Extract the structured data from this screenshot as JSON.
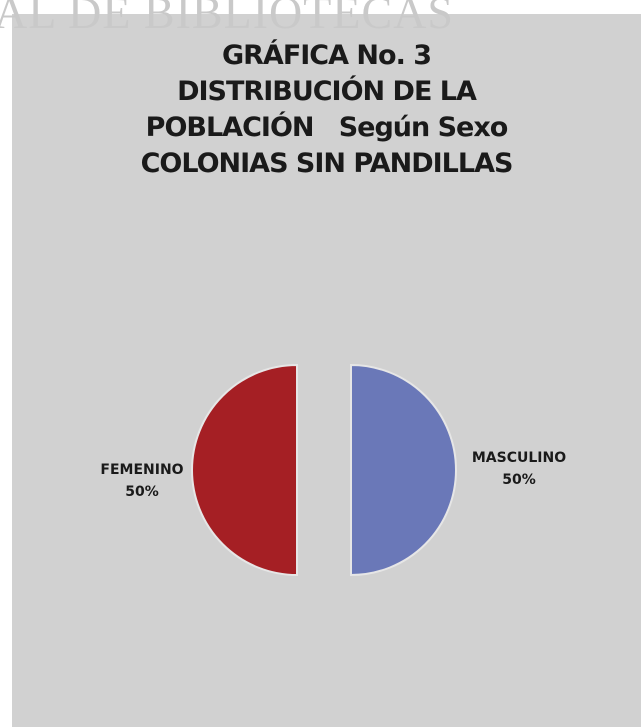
{
  "watermark": "AL DE BIBLIOTECAS",
  "chart_data": {
    "type": "pie",
    "title_lines": [
      "GRÁFICA No. 3",
      "DISTRIBUCIÓN DE LA",
      "POBLACIÓN   Según Sexo",
      "COLONIAS SIN PANDILLAS"
    ],
    "slices": [
      {
        "label": "FEMENINO",
        "value": 50,
        "display": "50%",
        "color": "#a51f24"
      },
      {
        "label": "MASCULINO",
        "value": 50,
        "display": "50%",
        "color": "#6a78b8"
      }
    ],
    "exploded": true
  }
}
